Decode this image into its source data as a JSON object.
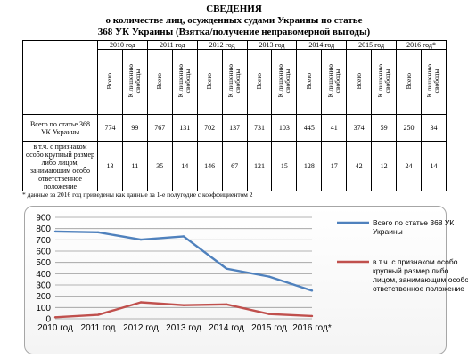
{
  "header": {
    "line1": "СВЕДЕНИЯ",
    "line2": "о количестве лиц, осужденных судами Украины по статье",
    "line3": "368 УК Украины (Взятка/получение неправомерной выгоды)"
  },
  "table": {
    "years": [
      "2010 год",
      "2011 год",
      "2012 год",
      "2013 год",
      "2014 год",
      "2015 год",
      "2016 год*"
    ],
    "sub_total": "Всего",
    "sub_prison": "К лишению\nсвободы",
    "rows": [
      {
        "label": "Всего по статье 368 УК Украины",
        "values": [
          "774",
          "99",
          "767",
          "131",
          "702",
          "137",
          "731",
          "103",
          "445",
          "41",
          "374",
          "59",
          "250",
          "34"
        ]
      },
      {
        "label": "в т.ч. с признаком особо крупный размер либо лицом, занимающим особо ответственное положение",
        "values": [
          "13",
          "11",
          "35",
          "14",
          "146",
          "67",
          "121",
          "15",
          "128",
          "17",
          "42",
          "12",
          "24",
          "14"
        ]
      }
    ]
  },
  "footnote": "* данные за 2016 год приведены как данные за 1-е полугодие  с коэффициентом 2",
  "chart_data": {
    "type": "line",
    "x": [
      "2010 год",
      "2011 год",
      "2012 год",
      "2013 год",
      "2014 год",
      "2015 год",
      "2016 год*"
    ],
    "ylim": [
      0,
      900
    ],
    "yticks": [
      "0",
      "100",
      "200",
      "300",
      "400",
      "500",
      "600",
      "700",
      "800",
      "900"
    ],
    "grid": true,
    "legend_position": "right",
    "series": [
      {
        "name": "Всего по статье 368  УК Украины",
        "color": "#4f81bd",
        "values": [
          774,
          767,
          702,
          731,
          445,
          374,
          250
        ]
      },
      {
        "name": "в т.ч. с признаком особо крупный размер либо лицом, занимающим особо ответственное положение",
        "color": "#c0504d",
        "values": [
          13,
          35,
          146,
          121,
          128,
          42,
          24
        ]
      }
    ]
  }
}
